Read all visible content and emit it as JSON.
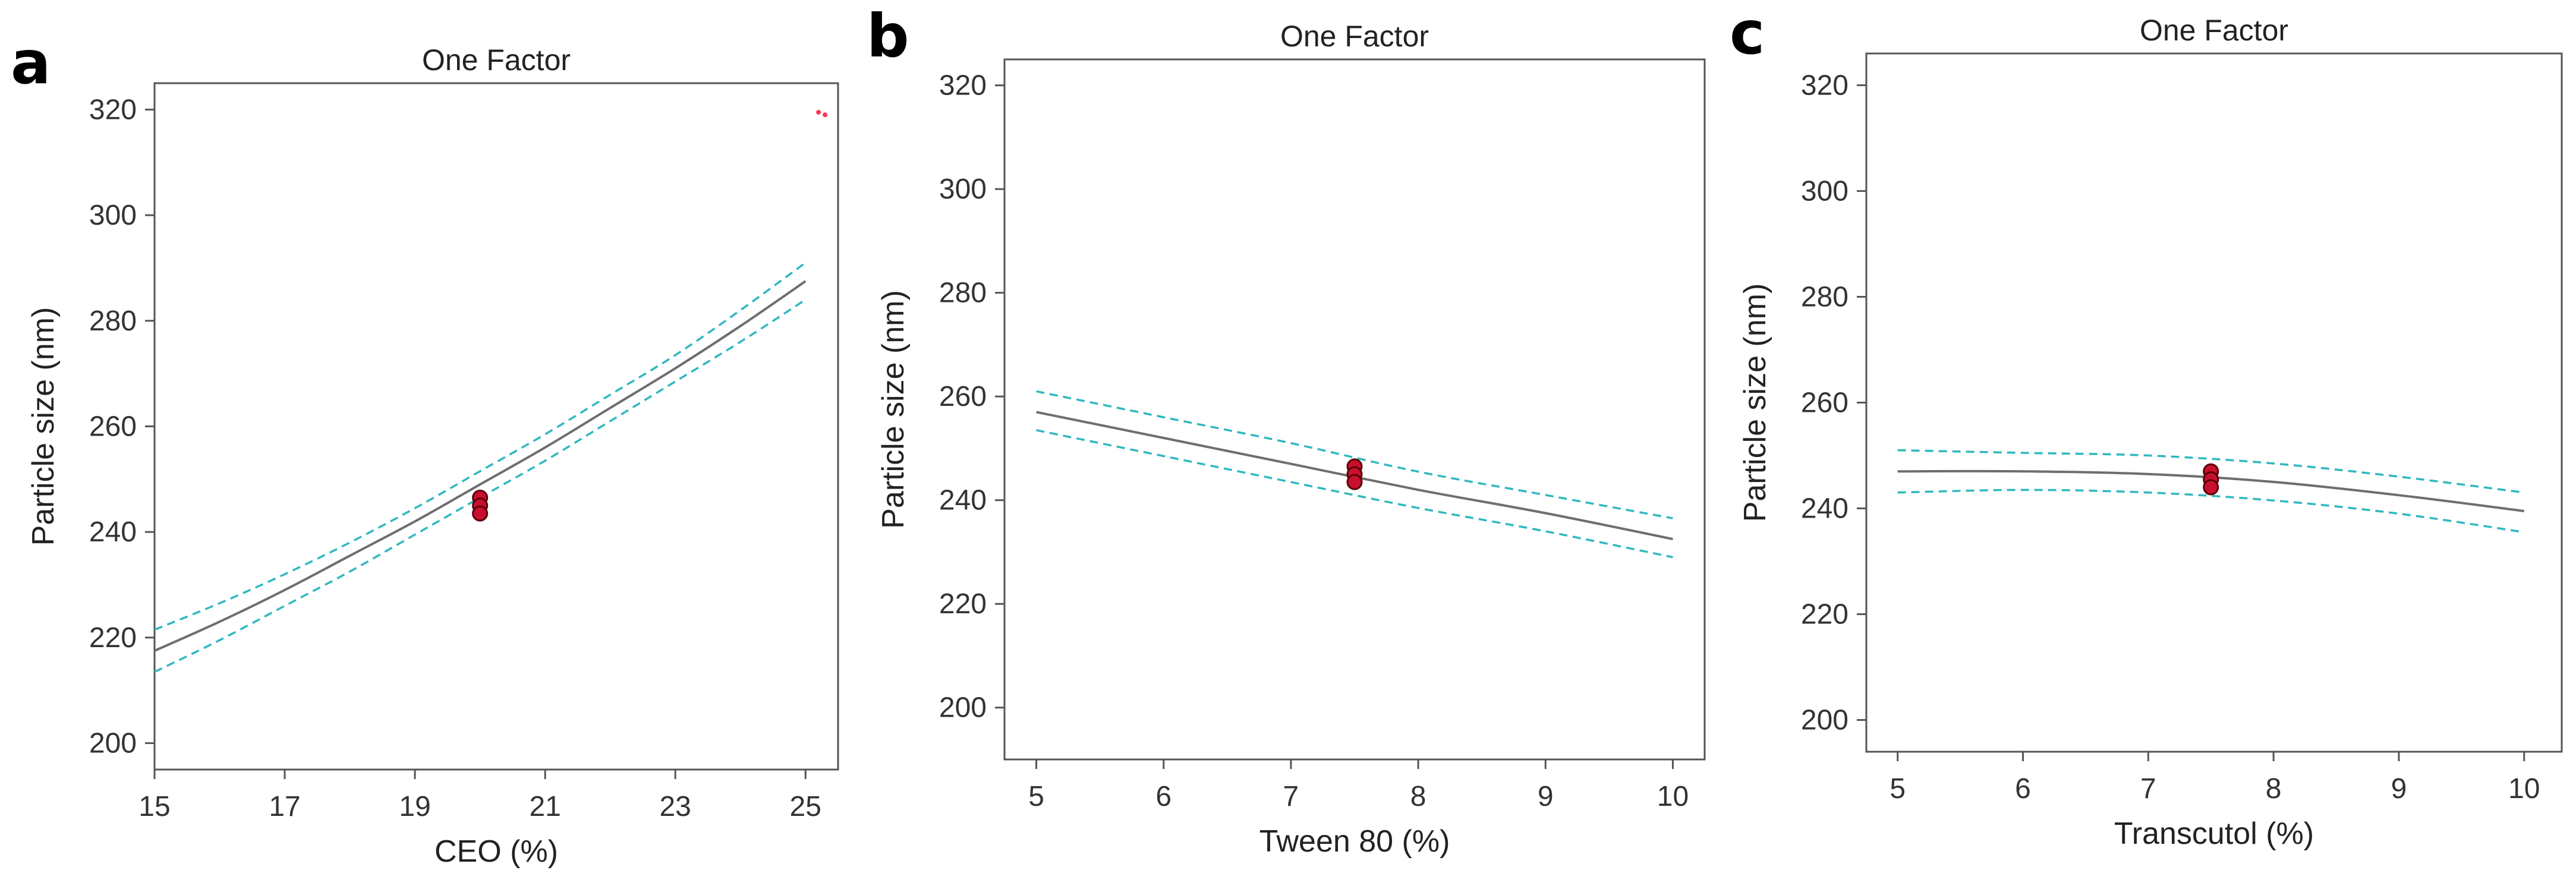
{
  "chart_data": [
    {
      "panel_label": "a",
      "type": "line",
      "title": "One Factor",
      "xlabel": "CEO (%)",
      "ylabel": "Particle size (nm)",
      "xlim": [
        15,
        25.5
      ],
      "ylim": [
        195,
        325
      ],
      "xticks": [
        15,
        17,
        19,
        21,
        23,
        25
      ],
      "yticks": [
        200,
        220,
        240,
        260,
        280,
        300,
        320
      ],
      "grid": false,
      "series": [
        {
          "name": "fit",
          "style": "solid",
          "color": "#6e6e6e",
          "x": [
            15,
            16,
            17,
            18,
            19,
            20,
            21,
            22,
            23,
            24,
            25
          ],
          "y": [
            217.5,
            223,
            229,
            235.5,
            242,
            249,
            256,
            263.5,
            271,
            279,
            287.5
          ]
        },
        {
          "name": "upper CI",
          "style": "dashed",
          "color": "#2fb8c0",
          "x": [
            15,
            16,
            17,
            18,
            19,
            20,
            21,
            22,
            23,
            24,
            25
          ],
          "y": [
            221.5,
            226.5,
            232,
            238,
            244.5,
            251.5,
            258.5,
            266,
            273.5,
            282,
            291
          ]
        },
        {
          "name": "lower CI",
          "style": "dashed",
          "color": "#2fb8c0",
          "x": [
            15,
            16,
            17,
            18,
            19,
            20,
            21,
            22,
            23,
            24,
            25
          ],
          "y": [
            213.5,
            219.5,
            226,
            232.5,
            239.5,
            246.5,
            253.5,
            261,
            268.5,
            276,
            284
          ]
        }
      ],
      "points": [
        {
          "x": 20,
          "y": 246.5
        },
        {
          "x": 20,
          "y": 245
        },
        {
          "x": 20,
          "y": 243.5
        }
      ],
      "stray_marks": [
        {
          "x": 25.2,
          "y": 319.5
        },
        {
          "x": 25.3,
          "y": 319
        }
      ]
    },
    {
      "panel_label": "b",
      "type": "line",
      "title": "One Factor",
      "xlabel": "Tween 80 (%)",
      "ylabel": "Particle size (nm)",
      "xlim": [
        4.75,
        10.25
      ],
      "ylim": [
        190,
        325
      ],
      "xticks": [
        5,
        6,
        7,
        8,
        9,
        10
      ],
      "yticks": [
        200,
        220,
        240,
        260,
        280,
        300,
        320
      ],
      "grid": false,
      "series": [
        {
          "name": "fit",
          "style": "solid",
          "color": "#6e6e6e",
          "x": [
            5,
            6,
            7,
            8,
            9,
            10
          ],
          "y": [
            257,
            252,
            247,
            242,
            237.5,
            232.5
          ]
        },
        {
          "name": "upper CI",
          "style": "dashed",
          "color": "#2fb8c0",
          "x": [
            5,
            6,
            7,
            8,
            9,
            10
          ],
          "y": [
            261,
            256,
            251,
            245.5,
            241,
            236.5
          ]
        },
        {
          "name": "lower CI",
          "style": "dashed",
          "color": "#2fb8c0",
          "x": [
            5,
            6,
            7,
            8,
            9,
            10
          ],
          "y": [
            253.5,
            248.5,
            243.5,
            238.5,
            234,
            229
          ]
        }
      ],
      "points": [
        {
          "x": 7.5,
          "y": 246.5
        },
        {
          "x": 7.5,
          "y": 245
        },
        {
          "x": 7.5,
          "y": 243.5
        }
      ]
    },
    {
      "panel_label": "c",
      "type": "line",
      "title": "One Factor",
      "xlabel": "Transcutol (%)",
      "ylabel": "Particle size (nm)",
      "xlim": [
        4.75,
        10.3
      ],
      "ylim": [
        194,
        326
      ],
      "xticks": [
        5,
        6,
        7,
        8,
        9,
        10
      ],
      "yticks": [
        200,
        220,
        240,
        260,
        280,
        300,
        320
      ],
      "grid": false,
      "series": [
        {
          "name": "fit",
          "style": "solid",
          "color": "#6e6e6e",
          "x": [
            5,
            6,
            7,
            8,
            9,
            10
          ],
          "y": [
            247,
            247,
            246.5,
            245,
            242.5,
            239.5
          ]
        },
        {
          "name": "upper CI",
          "style": "dashed",
          "color": "#2fb8c0",
          "x": [
            5,
            6,
            7,
            8,
            9,
            10
          ],
          "y": [
            251,
            250.5,
            250,
            248.5,
            246,
            243
          ]
        },
        {
          "name": "lower CI",
          "style": "dashed",
          "color": "#2fb8c0",
          "x": [
            5,
            6,
            7,
            8,
            9,
            10
          ],
          "y": [
            243,
            243.5,
            243,
            241.5,
            239,
            235.5
          ]
        }
      ],
      "points": [
        {
          "x": 7.5,
          "y": 247
        },
        {
          "x": 7.5,
          "y": 245.5
        },
        {
          "x": 7.5,
          "y": 244
        }
      ]
    }
  ]
}
